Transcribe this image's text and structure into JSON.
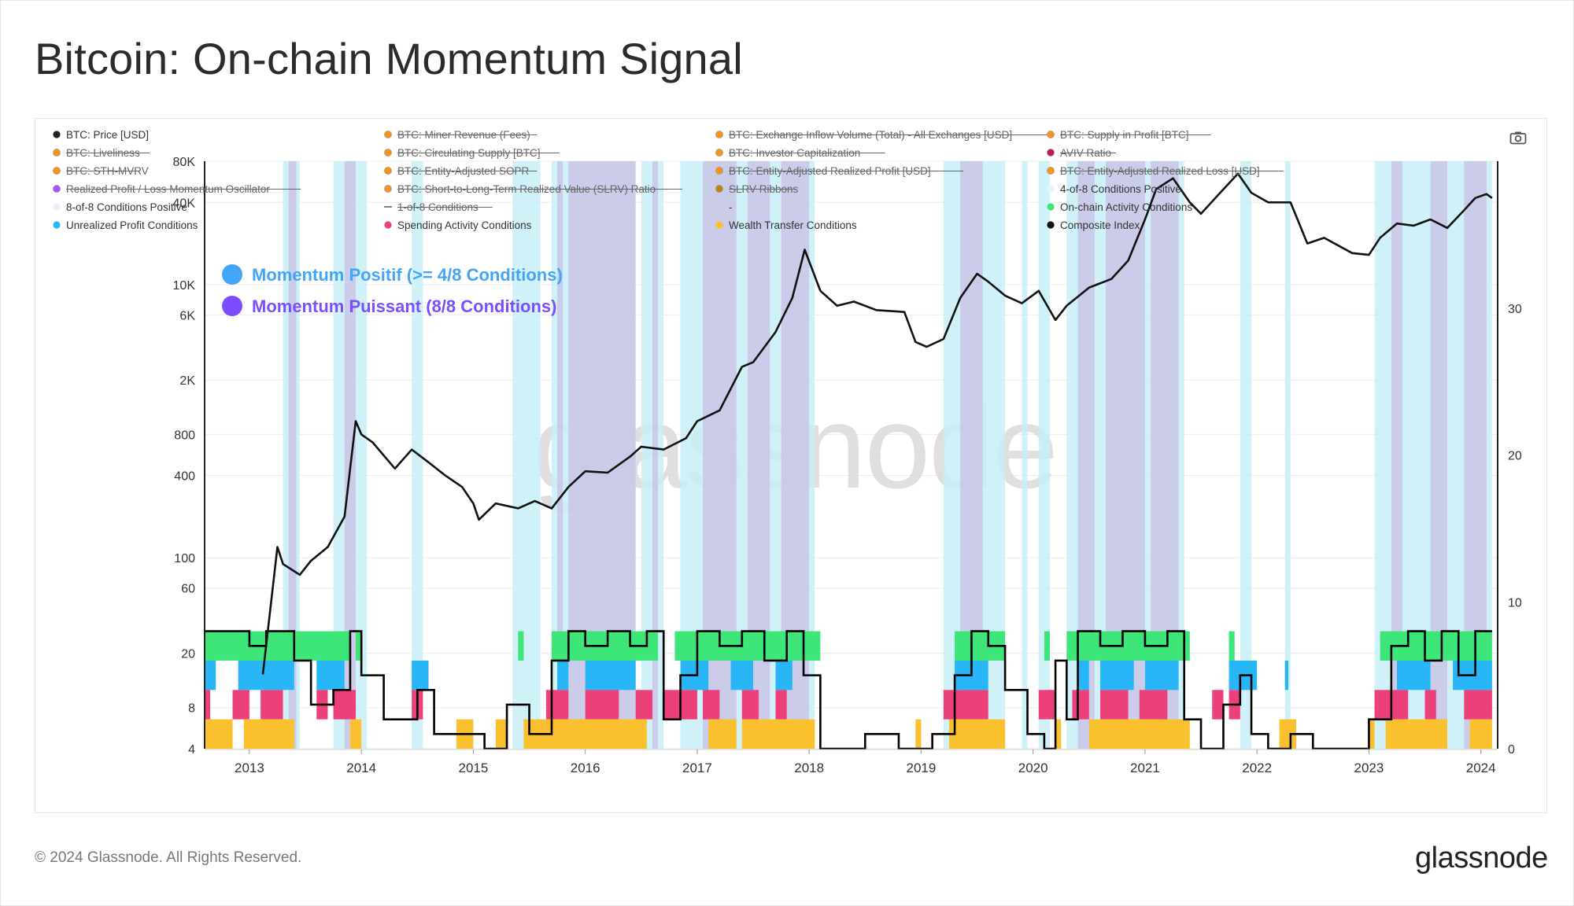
{
  "title": "Bitcoin: On-chain Momentum Signal",
  "footer": {
    "copyright": "© 2024 Glassnode. All Rights Reserved.",
    "logo": "glassnode"
  },
  "watermark": "glassnode",
  "icons": {
    "camera": "camera-icon"
  },
  "legend": [
    {
      "label": "BTC: Price [USD]",
      "color": "#222222",
      "disabled": false
    },
    {
      "label": "BTC: Miner Revenue (Fees)",
      "color": "#f7931a",
      "disabled": true
    },
    {
      "label": "BTC: Exchange Inflow Volume (Total) - All Exchanges [USD]",
      "color": "#f7931a",
      "disabled": true
    },
    {
      "label": "BTC: Supply in Profit [BTC]",
      "color": "#f7931a",
      "disabled": true
    },
    {
      "label": "BTC: Liveliness",
      "color": "#f7931a",
      "disabled": true
    },
    {
      "label": "BTC: Circulating Supply [BTC]",
      "color": "#f7931a",
      "disabled": true
    },
    {
      "label": "BTC: Investor Capitalization",
      "color": "#f7931a",
      "disabled": true
    },
    {
      "label": "AVIV Ratio",
      "color": "#c2185b",
      "disabled": true
    },
    {
      "label": "BTC: STH-MVRV",
      "color": "#f7931a",
      "disabled": true
    },
    {
      "label": "BTC: Entity-Adjusted SOPR",
      "color": "#f7931a",
      "disabled": true
    },
    {
      "label": "BTC: Entity-Adjusted Realized Profit [USD]",
      "color": "#f7931a",
      "disabled": true
    },
    {
      "label": "BTC: Entity-Adjusted Realized Loss [USD]",
      "color": "#f7931a",
      "disabled": true
    },
    {
      "label": "Realized Profit / Loss Momentum Oscillator",
      "color": "#a855f7",
      "disabled": true
    },
    {
      "label": "BTC: Short-to-Long-Term Realized Value (SLRV) Ratio",
      "color": "#f7931a",
      "disabled": true
    },
    {
      "label": "SLRV Ribbons",
      "color": "#b8860b",
      "disabled": true
    },
    {
      "label": "4-of-8 Conditions Positive",
      "color": "#e0f7fa",
      "disabled": false
    },
    {
      "label": "8-of-8 Conditions Positive",
      "color": "#ececf7",
      "disabled": false
    },
    {
      "label": "1-of-8 Conditions",
      "color": "#555555",
      "disabled": true,
      "line": true
    },
    {
      "label": "-",
      "color": "#ffffff",
      "disabled": false,
      "none": true
    },
    {
      "label": "On-chain Activity Conditions",
      "color": "#3ee67a",
      "disabled": false
    },
    {
      "label": "Unrealized Profit Conditions",
      "color": "#29b6f6",
      "disabled": false
    },
    {
      "label": "Spending Activity Conditions",
      "color": "#ec407a",
      "disabled": false
    },
    {
      "label": "Wealth Transfer Conditions",
      "color": "#fbc02d",
      "disabled": false
    },
    {
      "label": "Composite Index",
      "color": "#111111",
      "disabled": false
    }
  ],
  "annotations": [
    {
      "label": "Momentum Positif (>= 4/8 Conditions)",
      "color": "#42a5f5"
    },
    {
      "label": "Momentum Puissant (8/8 Conditions)",
      "color": "#7c4dff"
    }
  ],
  "colors": {
    "price": "#111111",
    "composite": "#000000",
    "band_4of8": "#c9eef8",
    "band_8of8": "#c8c3e6",
    "onchain": "#3ee67a",
    "unrealized": "#29b6f6",
    "spending": "#ec407a",
    "wealth": "#fbc02d"
  },
  "chart_data": {
    "type": "line",
    "x_axis": {
      "ticks": [
        "2013",
        "2014",
        "2015",
        "2016",
        "2017",
        "2018",
        "2019",
        "2020",
        "2021",
        "2022",
        "2023",
        "2024"
      ],
      "range": [
        2012.6,
        2024.15
      ]
    },
    "y_left": {
      "scale": "log",
      "ticks": [
        "4",
        "8",
        "20",
        "60",
        "100",
        "400",
        "800",
        "2K",
        "6K",
        "10K",
        "40K",
        "80K"
      ],
      "tick_values": [
        4,
        8,
        20,
        60,
        100,
        400,
        800,
        2000,
        6000,
        10000,
        40000,
        80000
      ],
      "range": [
        4,
        80000
      ]
    },
    "y_right": {
      "scale": "linear",
      "ticks": [
        "0",
        "10",
        "20",
        "30"
      ],
      "tick_values": [
        0,
        10,
        20,
        30
      ],
      "range": [
        0,
        40
      ]
    },
    "price_series": {
      "name": "BTC: Price [USD]",
      "points": [
        [
          2013.12,
          14
        ],
        [
          2013.25,
          120
        ],
        [
          2013.3,
          90
        ],
        [
          2013.45,
          75
        ],
        [
          2013.55,
          95
        ],
        [
          2013.7,
          120
        ],
        [
          2013.85,
          200
        ],
        [
          2013.9,
          450
        ],
        [
          2013.95,
          1000
        ],
        [
          2014.0,
          800
        ],
        [
          2014.1,
          700
        ],
        [
          2014.3,
          450
        ],
        [
          2014.45,
          620
        ],
        [
          2014.6,
          500
        ],
        [
          2014.75,
          400
        ],
        [
          2014.9,
          330
        ],
        [
          2015.0,
          250
        ],
        [
          2015.05,
          190
        ],
        [
          2015.2,
          250
        ],
        [
          2015.4,
          230
        ],
        [
          2015.55,
          260
        ],
        [
          2015.7,
          230
        ],
        [
          2015.85,
          330
        ],
        [
          2016.0,
          430
        ],
        [
          2016.2,
          420
        ],
        [
          2016.4,
          550
        ],
        [
          2016.5,
          650
        ],
        [
          2016.7,
          620
        ],
        [
          2016.9,
          750
        ],
        [
          2017.0,
          1000
        ],
        [
          2017.2,
          1200
        ],
        [
          2017.4,
          2500
        ],
        [
          2017.5,
          2700
        ],
        [
          2017.7,
          4500
        ],
        [
          2017.85,
          8000
        ],
        [
          2017.96,
          18000
        ],
        [
          2018.1,
          9000
        ],
        [
          2018.25,
          7000
        ],
        [
          2018.4,
          7500
        ],
        [
          2018.6,
          6500
        ],
        [
          2018.85,
          6300
        ],
        [
          2018.95,
          3800
        ],
        [
          2019.05,
          3500
        ],
        [
          2019.2,
          4000
        ],
        [
          2019.35,
          8000
        ],
        [
          2019.5,
          12000
        ],
        [
          2019.6,
          10500
        ],
        [
          2019.75,
          8300
        ],
        [
          2019.9,
          7300
        ],
        [
          2020.05,
          9000
        ],
        [
          2020.2,
          5500
        ],
        [
          2020.3,
          7000
        ],
        [
          2020.5,
          9500
        ],
        [
          2020.7,
          11000
        ],
        [
          2020.85,
          15000
        ],
        [
          2021.0,
          30000
        ],
        [
          2021.1,
          50000
        ],
        [
          2021.25,
          60000
        ],
        [
          2021.4,
          40000
        ],
        [
          2021.5,
          33000
        ],
        [
          2021.65,
          45000
        ],
        [
          2021.83,
          65000
        ],
        [
          2021.95,
          47000
        ],
        [
          2022.1,
          40000
        ],
        [
          2022.3,
          40000
        ],
        [
          2022.45,
          20000
        ],
        [
          2022.6,
          22000
        ],
        [
          2022.85,
          17000
        ],
        [
          2023.0,
          16500
        ],
        [
          2023.1,
          22000
        ],
        [
          2023.25,
          28000
        ],
        [
          2023.4,
          27000
        ],
        [
          2023.55,
          30000
        ],
        [
          2023.7,
          26000
        ],
        [
          2023.85,
          35000
        ],
        [
          2023.95,
          43000
        ],
        [
          2024.05,
          46000
        ],
        [
          2024.1,
          43000
        ]
      ]
    },
    "composite_index": {
      "name": "Composite Index",
      "points": [
        [
          2012.6,
          8
        ],
        [
          2012.8,
          8
        ],
        [
          2013.0,
          7
        ],
        [
          2013.15,
          8
        ],
        [
          2013.35,
          8
        ],
        [
          2013.4,
          6
        ],
        [
          2013.55,
          3
        ],
        [
          2013.75,
          4
        ],
        [
          2013.9,
          8
        ],
        [
          2014.0,
          5
        ],
        [
          2014.2,
          2
        ],
        [
          2014.5,
          4
        ],
        [
          2014.65,
          1
        ],
        [
          2014.9,
          1
        ],
        [
          2015.1,
          0
        ],
        [
          2015.3,
          3
        ],
        [
          2015.5,
          1
        ],
        [
          2015.7,
          6
        ],
        [
          2015.85,
          8
        ],
        [
          2016.0,
          7
        ],
        [
          2016.2,
          8
        ],
        [
          2016.4,
          7
        ],
        [
          2016.55,
          8
        ],
        [
          2016.7,
          2
        ],
        [
          2016.85,
          5
        ],
        [
          2017.0,
          8
        ],
        [
          2017.2,
          7
        ],
        [
          2017.4,
          8
        ],
        [
          2017.6,
          6
        ],
        [
          2017.8,
          8
        ],
        [
          2017.95,
          5
        ],
        [
          2018.1,
          0
        ],
        [
          2018.5,
          1
        ],
        [
          2018.8,
          0
        ],
        [
          2019.1,
          1
        ],
        [
          2019.3,
          5
        ],
        [
          2019.45,
          8
        ],
        [
          2019.6,
          7
        ],
        [
          2019.75,
          4
        ],
        [
          2019.95,
          1
        ],
        [
          2020.1,
          0
        ],
        [
          2020.2,
          6
        ],
        [
          2020.3,
          2
        ],
        [
          2020.4,
          8
        ],
        [
          2020.6,
          7
        ],
        [
          2020.8,
          8
        ],
        [
          2021.0,
          7
        ],
        [
          2021.2,
          8
        ],
        [
          2021.35,
          2
        ],
        [
          2021.5,
          0
        ],
        [
          2021.7,
          3
        ],
        [
          2021.85,
          5
        ],
        [
          2021.95,
          1
        ],
        [
          2022.1,
          0
        ],
        [
          2022.3,
          1
        ],
        [
          2022.5,
          0
        ],
        [
          2022.8,
          0
        ],
        [
          2023.0,
          2
        ],
        [
          2023.2,
          7
        ],
        [
          2023.35,
          8
        ],
        [
          2023.5,
          6
        ],
        [
          2023.65,
          8
        ],
        [
          2023.8,
          5
        ],
        [
          2023.95,
          8
        ],
        [
          2024.1,
          8
        ]
      ]
    },
    "bands_4of8": [
      [
        2013.3,
        2013.45
      ],
      [
        2013.75,
        2014.05
      ],
      [
        2014.45,
        2014.55
      ],
      [
        2015.35,
        2015.6
      ],
      [
        2015.7,
        2016.45
      ],
      [
        2016.5,
        2016.7
      ],
      [
        2016.85,
        2018.05
      ],
      [
        2019.2,
        2019.75
      ],
      [
        2019.9,
        2019.95
      ],
      [
        2020.05,
        2020.15
      ],
      [
        2020.3,
        2021.35
      ],
      [
        2021.85,
        2021.95
      ],
      [
        2022.25,
        2022.3
      ],
      [
        2023.05,
        2024.1
      ]
    ],
    "bands_8of8": [
      [
        2013.35,
        2013.42
      ],
      [
        2013.85,
        2013.95
      ],
      [
        2015.75,
        2015.8
      ],
      [
        2015.85,
        2016.45
      ],
      [
        2016.6,
        2016.65
      ],
      [
        2017.05,
        2017.35
      ],
      [
        2017.45,
        2017.65
      ],
      [
        2017.75,
        2018.0
      ],
      [
        2019.35,
        2019.55
      ],
      [
        2020.4,
        2020.55
      ],
      [
        2020.65,
        2021.0
      ],
      [
        2021.05,
        2021.3
      ],
      [
        2023.2,
        2023.3
      ],
      [
        2023.55,
        2023.7
      ],
      [
        2023.85,
        2024.05
      ]
    ],
    "conditions": {
      "onchain": [
        [
          2012.6,
          2013.9
        ],
        [
          2013.95,
          2014.0
        ],
        [
          2015.4,
          2015.45
        ],
        [
          2015.7,
          2016.65
        ],
        [
          2016.8,
          2018.1
        ],
        [
          2019.3,
          2019.75
        ],
        [
          2020.1,
          2020.15
        ],
        [
          2020.3,
          2021.4
        ],
        [
          2021.75,
          2021.8
        ],
        [
          2023.1,
          2024.1
        ]
      ],
      "unrealized": [
        [
          2012.6,
          2012.7
        ],
        [
          2012.9,
          2013.4
        ],
        [
          2013.6,
          2013.85
        ],
        [
          2014.45,
          2014.6
        ],
        [
          2015.75,
          2015.85
        ],
        [
          2016.0,
          2016.45
        ],
        [
          2016.85,
          2017.1
        ],
        [
          2017.3,
          2017.5
        ],
        [
          2017.7,
          2017.85
        ],
        [
          2019.3,
          2019.6
        ],
        [
          2020.4,
          2020.5
        ],
        [
          2020.6,
          2020.9
        ],
        [
          2021.0,
          2021.3
        ],
        [
          2021.75,
          2022.0
        ],
        [
          2022.25,
          2022.28
        ],
        [
          2023.25,
          2023.55
        ],
        [
          2023.75,
          2024.1
        ]
      ],
      "spending": [
        [
          2012.6,
          2012.65
        ],
        [
          2012.85,
          2013.0
        ],
        [
          2013.1,
          2013.3
        ],
        [
          2013.6,
          2013.7
        ],
        [
          2013.75,
          2013.95
        ],
        [
          2014.45,
          2014.55
        ],
        [
          2015.65,
          2015.85
        ],
        [
          2016.0,
          2016.3
        ],
        [
          2016.45,
          2016.6
        ],
        [
          2016.7,
          2017.0
        ],
        [
          2017.05,
          2017.2
        ],
        [
          2017.4,
          2017.55
        ],
        [
          2017.7,
          2017.8
        ],
        [
          2019.2,
          2019.6
        ],
        [
          2020.05,
          2020.2
        ],
        [
          2020.35,
          2020.5
        ],
        [
          2020.6,
          2020.85
        ],
        [
          2020.95,
          2021.2
        ],
        [
          2021.6,
          2021.7
        ],
        [
          2021.75,
          2021.85
        ],
        [
          2023.05,
          2023.35
        ],
        [
          2023.5,
          2023.6
        ],
        [
          2023.85,
          2024.1
        ]
      ],
      "wealth": [
        [
          2012.6,
          2012.85
        ],
        [
          2012.95,
          2013.4
        ],
        [
          2013.9,
          2014.0
        ],
        [
          2014.85,
          2015.0
        ],
        [
          2015.2,
          2015.3
        ],
        [
          2015.45,
          2016.55
        ],
        [
          2017.1,
          2017.35
        ],
        [
          2017.4,
          2018.05
        ],
        [
          2018.95,
          2019.0
        ],
        [
          2019.25,
          2019.75
        ],
        [
          2020.2,
          2020.25
        ],
        [
          2020.5,
          2021.4
        ],
        [
          2022.2,
          2022.35
        ],
        [
          2023.0,
          2023.05
        ],
        [
          2023.15,
          2023.7
        ],
        [
          2023.9,
          2024.1
        ]
      ]
    }
  }
}
